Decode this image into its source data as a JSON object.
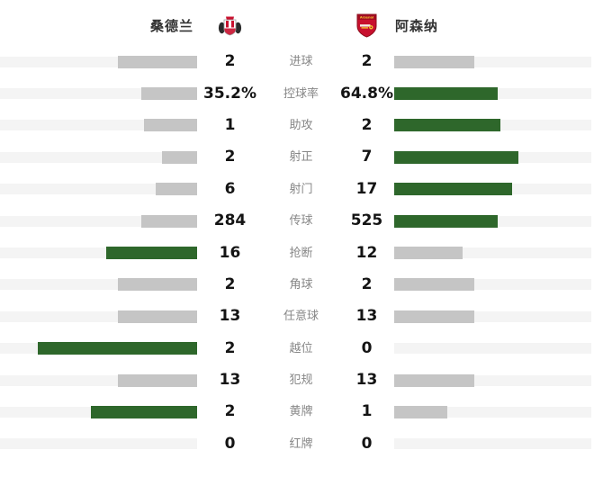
{
  "header": {
    "home_name": "桑德兰",
    "away_name": "阿森纳",
    "icons": {
      "home_crest": "sunderland-crest-icon",
      "away_crest": "arsenal-crest-icon"
    }
  },
  "colors": {
    "win_green": "#2e672b",
    "lose_gray": "#c5c5c5",
    "track_gray": "#f4f4f4",
    "value_text": "#141414",
    "label_text": "#878787",
    "background": "#ffffff"
  },
  "chart_data": {
    "type": "bar",
    "orientation": "horizontal-paired-diverging",
    "title": "",
    "categories": [
      "进球",
      "控球率",
      "助攻",
      "射正",
      "射门",
      "传球",
      "抢断",
      "角球",
      "任意球",
      "越位",
      "犯规",
      "黄牌",
      "红牌"
    ],
    "series": [
      {
        "name": "桑德兰",
        "values": [
          2,
          35.2,
          1,
          2,
          6,
          284,
          16,
          2,
          13,
          2,
          13,
          2,
          0
        ],
        "displays": [
          "2",
          "35.2%",
          "1",
          "2",
          "6",
          "284",
          "16",
          "2",
          "13",
          "2",
          "13",
          "2",
          "0"
        ]
      },
      {
        "name": "阿森纳",
        "values": [
          2,
          64.8,
          2,
          7,
          17,
          525,
          12,
          2,
          13,
          0,
          13,
          1,
          0
        ],
        "displays": [
          "2",
          "64.8%",
          "2",
          "7",
          "17",
          "525",
          "12",
          "2",
          "13",
          "0",
          "13",
          "1",
          "0"
        ]
      }
    ],
    "legend_position": "top",
    "grid": false,
    "bar_rule": "bar length proportional to value/(home+away) per row; side with larger value is green, other side gray; ties both gray; zero sum shows empty track"
  }
}
